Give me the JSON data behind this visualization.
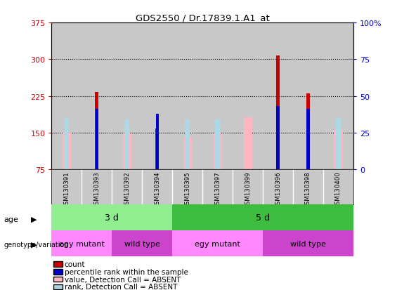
{
  "title": "GDS2550 / Dr.17839.1.A1_at",
  "samples": [
    "GSM130391",
    "GSM130393",
    "GSM130392",
    "GSM130394",
    "GSM130395",
    "GSM130397",
    "GSM130399",
    "GSM130396",
    "GSM130398",
    "GSM130400"
  ],
  "ylim_left": [
    75,
    375
  ],
  "ylim_right": [
    0,
    100
  ],
  "yticks_left": [
    75,
    150,
    225,
    300,
    375
  ],
  "yticks_right": [
    0,
    25,
    50,
    75,
    100
  ],
  "yticklabels_right": [
    "0",
    "25",
    "50",
    "75",
    "100%"
  ],
  "red_bars": [
    0,
    233,
    0,
    158,
    0,
    0,
    0,
    308,
    230,
    0
  ],
  "pink_bars": [
    150,
    0,
    148,
    0,
    141,
    149,
    182,
    0,
    0,
    156
  ],
  "blue_bars_pct": [
    0,
    41,
    0,
    38,
    0,
    0,
    0,
    43,
    41,
    0
  ],
  "light_blue_pct": [
    35,
    0,
    34,
    0,
    34,
    34,
    0,
    0,
    0,
    35
  ],
  "age_groups": [
    {
      "label": "3 d",
      "start": 0,
      "end": 4,
      "color": "#90EE90"
    },
    {
      "label": "5 d",
      "start": 4,
      "end": 10,
      "color": "#3DBD3D"
    }
  ],
  "genotype_groups": [
    {
      "label": "egy mutant",
      "start": 0,
      "end": 2,
      "color": "#FF88FF"
    },
    {
      "label": "wild type",
      "start": 2,
      "end": 4,
      "color": "#CC44CC"
    },
    {
      "label": "egy mutant",
      "start": 4,
      "end": 7,
      "color": "#FF88FF"
    },
    {
      "label": "wild type",
      "start": 7,
      "end": 10,
      "color": "#CC44CC"
    }
  ],
  "legend_items": [
    {
      "color": "#CC0000",
      "label": "count"
    },
    {
      "color": "#0000CC",
      "label": "percentile rank within the sample"
    },
    {
      "color": "#FFB6C1",
      "label": "value, Detection Call = ABSENT"
    },
    {
      "color": "#ADD8E6",
      "label": "rank, Detection Call = ABSENT"
    }
  ],
  "red_color": "#CC0000",
  "pink_color": "#FFB6C1",
  "blue_color": "#0000CC",
  "light_blue_color": "#ADD8E6",
  "left_tick_color": "#CC0000",
  "right_tick_color": "#0000CC",
  "sample_bg_color": "#C8C8C8",
  "gridline_values": [
    150,
    225,
    300
  ]
}
